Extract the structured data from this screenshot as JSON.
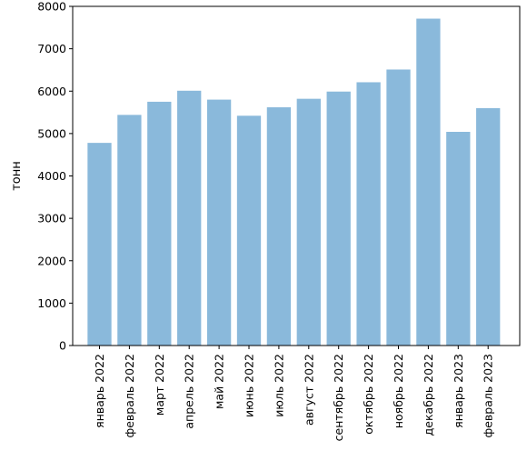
{
  "chart_data": {
    "type": "bar",
    "title": "",
    "xlabel": "",
    "ylabel": "тонн",
    "categories": [
      "январь 2022",
      "февраль 2022",
      "март 2022",
      "апрель 2022",
      "май 2022",
      "июнь 2022",
      "июль 2022",
      "август 2022",
      "сентябрь 2022",
      "октябрь 2022",
      "ноябрь 2022",
      "декабрь 2022",
      "январь 2023",
      "февраль 2023"
    ],
    "values": [
      4780,
      5440,
      5750,
      6010,
      5800,
      5420,
      5620,
      5820,
      5990,
      6210,
      6510,
      7710,
      5040,
      5600
    ],
    "ylim": [
      0,
      8000
    ],
    "yticks": [
      0,
      1000,
      2000,
      3000,
      4000,
      5000,
      6000,
      7000,
      8000
    ],
    "bar_color": "#8ab9db",
    "grid": false,
    "legend": "none"
  }
}
